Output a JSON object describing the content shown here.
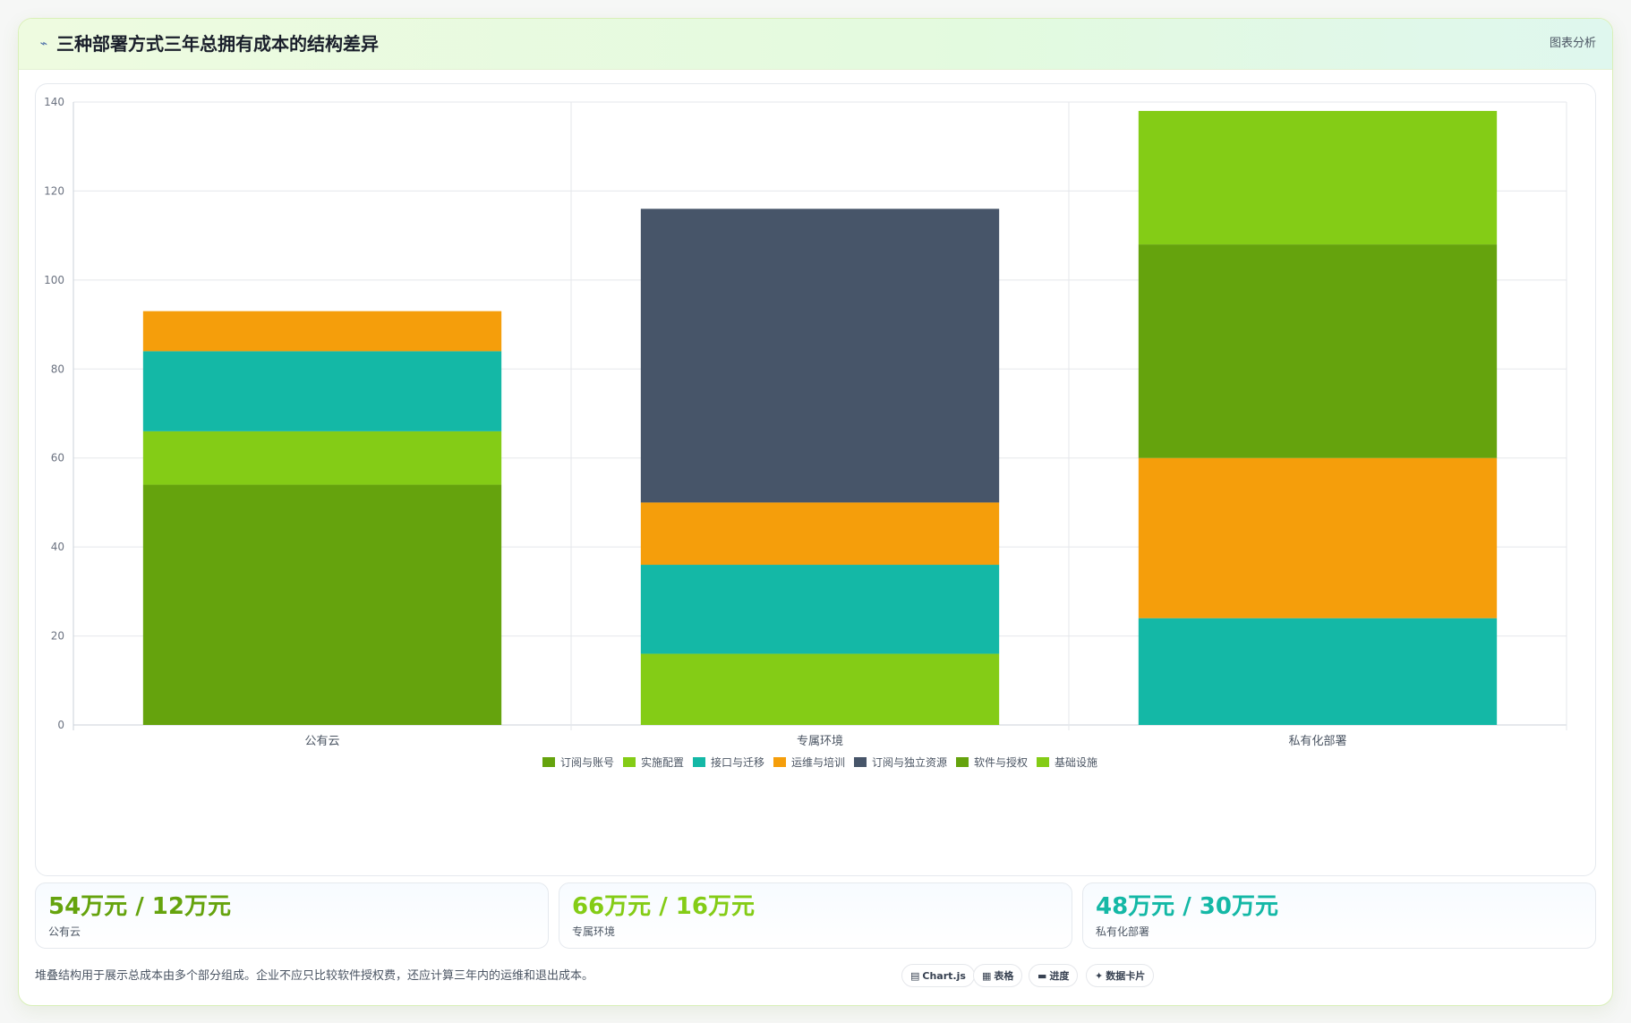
{
  "header": {
    "icon": "chart-line-icon",
    "title": "三种部署方式三年总拥有成本的结构差异",
    "right_label": "图表分析"
  },
  "chart_data": {
    "type": "bar",
    "stacked": true,
    "title": "",
    "xlabel": "",
    "ylabel": "",
    "ylim": [
      0,
      140
    ],
    "yticks": [
      0,
      20,
      40,
      60,
      80,
      100,
      120,
      140
    ],
    "grid": true,
    "legend_position": "bottom",
    "categories": [
      "公有云",
      "专属环境",
      "私有化部署"
    ],
    "series": [
      {
        "name": "订阅与账号",
        "color": "#65a30d",
        "values": [
          54,
          0,
          0
        ]
      },
      {
        "name": "实施配置",
        "color": "#84cc16",
        "values": [
          12,
          16,
          0
        ]
      },
      {
        "name": "接口与迁移",
        "color": "#14b8a6",
        "values": [
          18,
          20,
          24
        ]
      },
      {
        "name": "运维与培训",
        "color": "#f59e0b",
        "values": [
          9,
          14,
          36
        ]
      },
      {
        "name": "订阅与独立资源",
        "color": "#475569",
        "values": [
          0,
          66,
          0
        ]
      },
      {
        "name": "软件与授权",
        "color": "#65a30d",
        "values": [
          0,
          0,
          48
        ]
      },
      {
        "name": "基础设施",
        "color": "#84cc16",
        "values": [
          0,
          0,
          30
        ]
      }
    ]
  },
  "stats": [
    {
      "value": "54万元 / 12万元",
      "label": "公有云",
      "color": "#65a30d"
    },
    {
      "value": "66万元 / 16万元",
      "label": "专属环境",
      "color": "#84cc16"
    },
    {
      "value": "48万元 / 30万元",
      "label": "私有化部署",
      "color": "#14b8a6"
    }
  ],
  "footnote": "堆叠结构用于展示总成本由多个部分组成。企业不应只比较软件授权费，还应计算三年内的运维和退出成本。",
  "pills": [
    {
      "icon": "▤",
      "icon_name": "chartjs-icon",
      "label": "Chart.js"
    },
    {
      "icon": "▦",
      "icon_name": "table-icon",
      "label": "表格"
    },
    {
      "icon": "▬",
      "icon_name": "progress-icon",
      "label": "进度"
    },
    {
      "icon": "✦",
      "icon_name": "data-card-icon",
      "label": "数据卡片"
    }
  ]
}
